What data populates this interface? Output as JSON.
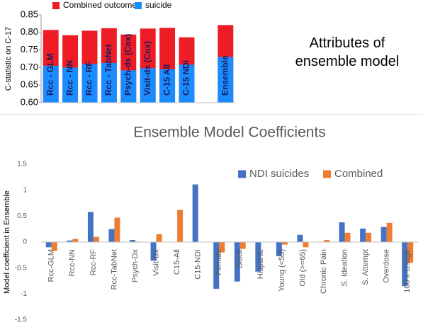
{
  "caption": "Attributes of ensemble model",
  "chart_data": [
    {
      "type": "bar",
      "overlap": true,
      "y_label": "C-statistic on C-17",
      "categories": [
        "Rcc - GLM",
        "Rcc - NN",
        "Rcc - RF",
        "Rcc - TabNet",
        "Psych-ds (Cox)",
        "Visit-ds (Cox)",
        "C-15 All",
        "C-15 NDI",
        null,
        "Ensemble"
      ],
      "series": [
        {
          "name": "Combined outcome",
          "color": "#ee1c25",
          "values": [
            0.807,
            0.792,
            0.805,
            0.812,
            0.794,
            0.811,
            0.813,
            0.786,
            null,
            0.821
          ]
        },
        {
          "name": "suicide",
          "color": "#1a8cff",
          "values": [
            0.705,
            0.7,
            0.71,
            0.713,
            0.692,
            0.698,
            0.695,
            0.708,
            null,
            0.73
          ]
        }
      ],
      "ylim": [
        0.6,
        0.85
      ],
      "yticks": [
        {
          "value": 0.6,
          "label": "0.60"
        },
        {
          "value": 0.65,
          "label": "0.65"
        },
        {
          "value": 0.7,
          "label": "0.70"
        },
        {
          "value": 0.75,
          "label": "0.75"
        },
        {
          "value": 0.8,
          "label": "0.80"
        },
        {
          "value": 0.85,
          "label": "0.85"
        }
      ],
      "grid": false
    },
    {
      "type": "bar",
      "overlap": false,
      "title": "Ensemble Model Coefficients",
      "y_label": "Model coefficient in Ensemble",
      "categories": [
        "Rcc-GLM",
        "Rcc-NN",
        "Rcc-RF",
        "Rcc-TabNet",
        "Psych-Dx",
        "Visit-Dx",
        "C15-All",
        "C15-NDI",
        "Female",
        "Black",
        "Hispanic",
        "Young (<55)",
        "Old (>=65)",
        "Chronic Pain",
        "S. Ideation",
        "S. Attempt",
        "Overdose",
        "100 x Usage"
      ],
      "series": [
        {
          "name": "NDI suicides",
          "color": "#4472c4",
          "values": [
            -0.1,
            0.03,
            0.58,
            0.25,
            0.04,
            -0.36,
            0,
            1.11,
            -0.9,
            -0.76,
            -0.57,
            -0.27,
            0.14,
            0,
            0.38,
            0.26,
            0.29,
            -0.85
          ]
        },
        {
          "name": "Combined",
          "color": "#ed7d31",
          "values": [
            -0.17,
            0.06,
            0.1,
            0.47,
            0.01,
            0.15,
            0.62,
            0,
            -0.2,
            -0.13,
            0,
            -0.05,
            -0.1,
            0.04,
            0.18,
            0.18,
            0.37,
            -0.4
          ]
        }
      ],
      "ylim": [
        -1.5,
        1.5
      ],
      "yticks": [
        -1.5,
        -1,
        -0.5,
        0,
        0.5,
        1,
        1.5
      ],
      "grid": false
    }
  ]
}
